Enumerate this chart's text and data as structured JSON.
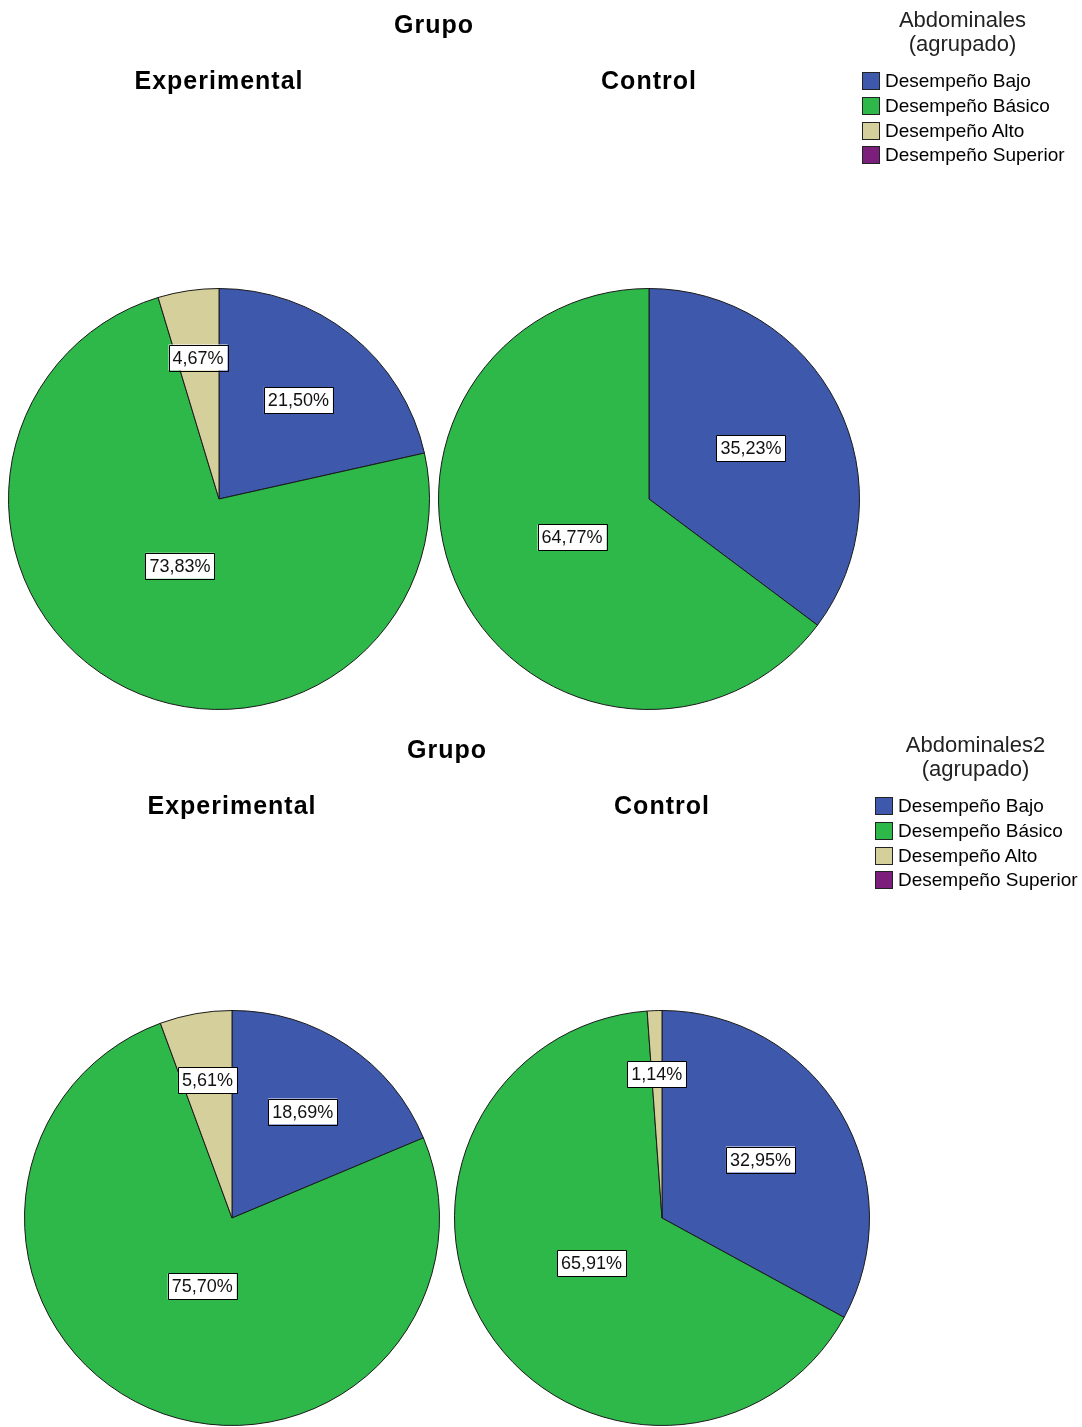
{
  "chart_data": [
    {
      "type": "pie",
      "title": "Grupo",
      "categories": [
        "Desempeño Bajo",
        "Desempeño Básico",
        "Desempeño Alto",
        "Desempeño Superior"
      ],
      "colors": [
        "#3e58ac",
        "#2eb84a",
        "#d5cf9b",
        "#7c1f7c"
      ],
      "legend": "top right",
      "legend_title": "Abdominales (agrupado)",
      "series": [
        {
          "name": "Experimental",
          "values": [
            21.5,
            73.83,
            4.67,
            0
          ],
          "value_labels": [
            "21,50%",
            "73,83%",
            "4,67%",
            null
          ]
        },
        {
          "name": "Control",
          "values": [
            35.23,
            64.77,
            0,
            0
          ],
          "value_labels": [
            "35,23%",
            "64,77%",
            null,
            null
          ]
        }
      ]
    },
    {
      "type": "pie",
      "title": "Grupo",
      "categories": [
        "Desempeño Bajo",
        "Desempeño Básico",
        "Desempeño Alto",
        "Desempeño Superior"
      ],
      "colors": [
        "#3e58ac",
        "#2eb84a",
        "#d5cf9b",
        "#7c1f7c"
      ],
      "legend": "top right",
      "legend_title": "Abdominales2 (agrupado)",
      "series": [
        {
          "name": "Experimental",
          "values": [
            18.69,
            75.7,
            5.61,
            0
          ],
          "value_labels": [
            "18,69%",
            "75,70%",
            "5,61%",
            null
          ]
        },
        {
          "name": "Control",
          "values": [
            32.95,
            65.91,
            1.14,
            0
          ],
          "value_labels": [
            "32,95%",
            "65,91%",
            "1,14%",
            null
          ]
        }
      ]
    }
  ]
}
